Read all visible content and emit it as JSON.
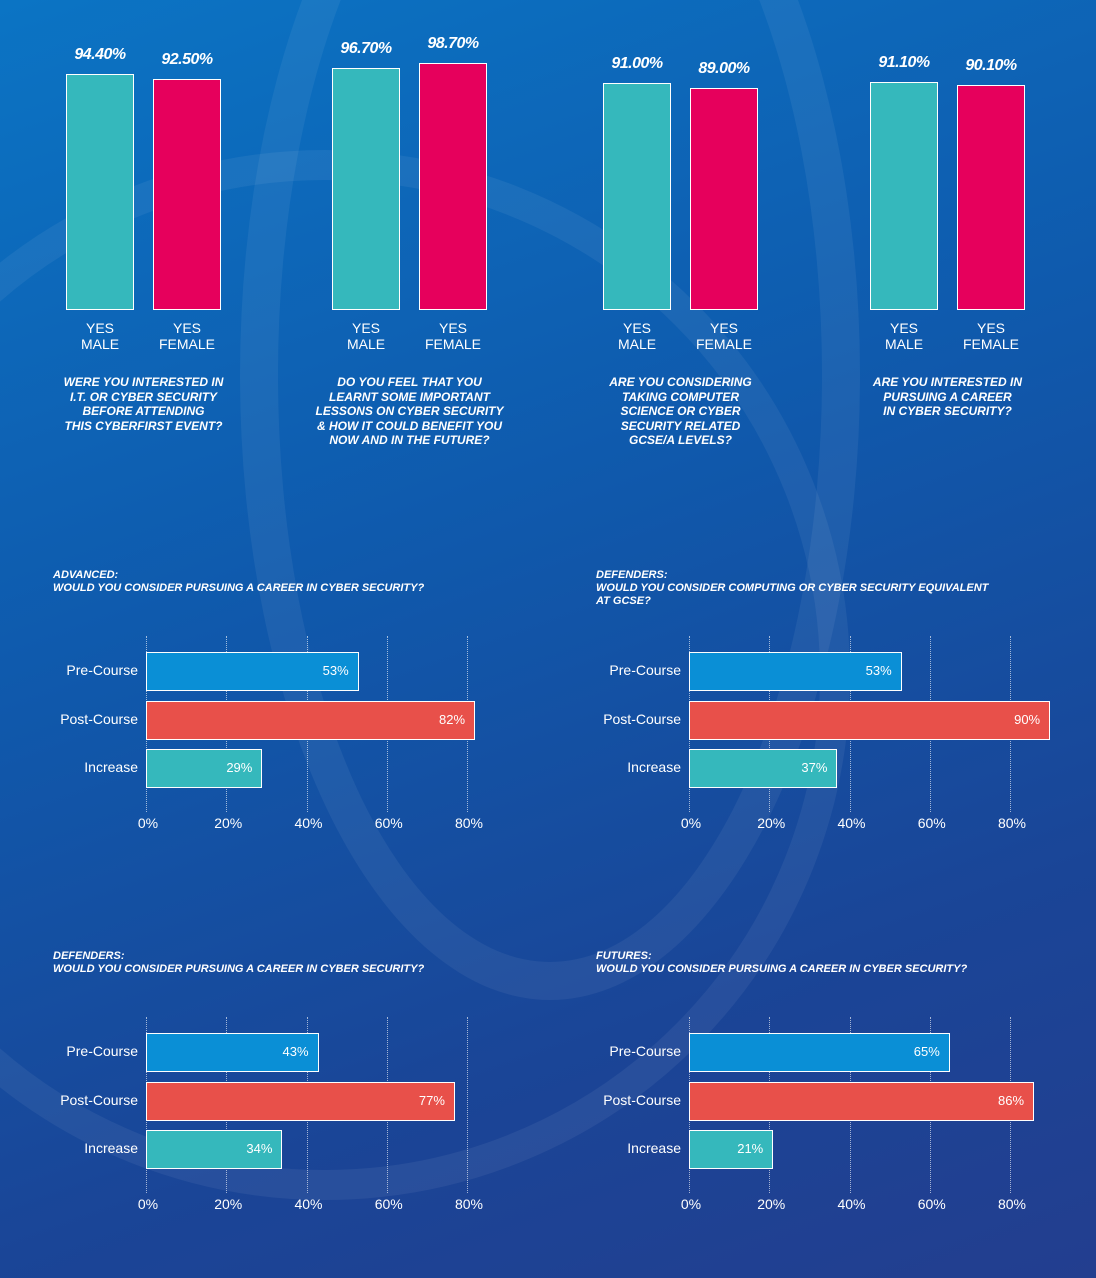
{
  "chart_data": [
    {
      "type": "bar",
      "categories": [
        "YES\nMALE",
        "YES\nFEMALE"
      ],
      "values": [
        94.4,
        92.5
      ],
      "value_labels": [
        "94.40%",
        "92.50%"
      ],
      "colors": [
        "#35b8bc",
        "#e6005c"
      ],
      "ylim": [
        0,
        100
      ],
      "caption": "WERE YOU INTERESTED IN\nI.T. OR CYBER SECURITY\nBEFORE ATTENDING\nTHIS CYBERFIRST EVENT?"
    },
    {
      "type": "bar",
      "categories": [
        "YES\nMALE",
        "YES\nFEMALE"
      ],
      "values": [
        96.7,
        98.7
      ],
      "value_labels": [
        "96.70%",
        "98.70%"
      ],
      "colors": [
        "#35b8bc",
        "#e6005c"
      ],
      "ylim": [
        0,
        100
      ],
      "caption": "DO YOU FEEL THAT YOU\nLEARNT SOME IMPORTANT\nLESSONS ON CYBER SECURITY\n& HOW IT COULD BENEFIT YOU\nNOW AND IN THE FUTURE?"
    },
    {
      "type": "bar",
      "categories": [
        "YES\nMALE",
        "YES\nFEMALE"
      ],
      "values": [
        91.0,
        89.0
      ],
      "value_labels": [
        "91.00%",
        "89.00%"
      ],
      "colors": [
        "#35b8bc",
        "#e6005c"
      ],
      "ylim": [
        0,
        100
      ],
      "caption": "ARE YOU CONSIDERING\nTAKING COMPUTER\nSCIENCE OR CYBER\nSECURITY RELATED\nGCSE/A LEVELS?"
    },
    {
      "type": "bar",
      "categories": [
        "YES\nMALE",
        "YES\nFEMALE"
      ],
      "values": [
        91.1,
        90.1
      ],
      "value_labels": [
        "91.10%",
        "90.10%"
      ],
      "colors": [
        "#35b8bc",
        "#e6005c"
      ],
      "ylim": [
        0,
        100
      ],
      "caption": "ARE YOU INTERESTED IN\nPURSUING A CAREER\nIN CYBER SECURITY?"
    },
    {
      "type": "bar",
      "horizontal": true,
      "title": "ADVANCED:\nWOULD YOU CONSIDER PURSUING A CAREER IN CYBER SECURITY?",
      "categories": [
        "Pre-Course",
        "Post-Course",
        "Increase"
      ],
      "values": [
        53,
        82,
        29
      ],
      "value_labels": [
        "53%",
        "82%",
        "29%"
      ],
      "colors": [
        "#0a8fd6",
        "#e8504a",
        "#35b8bc"
      ],
      "xlim": [
        0,
        80
      ],
      "xticks": [
        {
          "value": 0,
          "label": "0%"
        },
        {
          "value": 20,
          "label": "20%"
        },
        {
          "value": 40,
          "label": "40%"
        },
        {
          "value": 60,
          "label": "60%"
        },
        {
          "value": 80,
          "label": "80%"
        }
      ],
      "grid": true
    },
    {
      "type": "bar",
      "horizontal": true,
      "title": "DEFENDERS:\nWOULD YOU CONSIDER COMPUTING OR CYBER SECURITY EQUIVALENT\nAT GCSE?",
      "categories": [
        "Pre-Course",
        "Post-Course",
        "Increase"
      ],
      "values": [
        53,
        90,
        37
      ],
      "value_labels": [
        "53%",
        "90%",
        "37%"
      ],
      "colors": [
        "#0a8fd6",
        "#e8504a",
        "#35b8bc"
      ],
      "xlim": [
        0,
        80
      ],
      "xticks": [
        {
          "value": 0,
          "label": "0%"
        },
        {
          "value": 20,
          "label": "20%"
        },
        {
          "value": 40,
          "label": "40%"
        },
        {
          "value": 60,
          "label": "60%"
        },
        {
          "value": 80,
          "label": "80%"
        }
      ],
      "grid": true
    },
    {
      "type": "bar",
      "horizontal": true,
      "title": "DEFENDERS:\nWOULD YOU CONSIDER PURSUING A CAREER IN CYBER SECURITY?",
      "categories": [
        "Pre-Course",
        "Post-Course",
        "Increase"
      ],
      "values": [
        43,
        77,
        34
      ],
      "value_labels": [
        "43%",
        "77%",
        "34%"
      ],
      "colors": [
        "#0a8fd6",
        "#e8504a",
        "#35b8bc"
      ],
      "xlim": [
        0,
        80
      ],
      "xticks": [
        {
          "value": 0,
          "label": "0%"
        },
        {
          "value": 20,
          "label": "20%"
        },
        {
          "value": 40,
          "label": "40%"
        },
        {
          "value": 60,
          "label": "60%"
        },
        {
          "value": 80,
          "label": "80%"
        }
      ],
      "grid": true
    },
    {
      "type": "bar",
      "horizontal": true,
      "title": "FUTURES:\nWOULD YOU CONSIDER PURSUING A CAREER IN CYBER SECURITY?",
      "categories": [
        "Pre-Course",
        "Post-Course",
        "Increase"
      ],
      "values": [
        65,
        86,
        21
      ],
      "value_labels": [
        "65%",
        "86%",
        "21%"
      ],
      "colors": [
        "#0a8fd6",
        "#e8504a",
        "#35b8bc"
      ],
      "xlim": [
        0,
        80
      ],
      "xticks": [
        {
          "value": 0,
          "label": "0%"
        },
        {
          "value": 20,
          "label": "20%"
        },
        {
          "value": 40,
          "label": "40%"
        },
        {
          "value": 60,
          "label": "60%"
        },
        {
          "value": 80,
          "label": "80%"
        }
      ],
      "grid": true
    }
  ]
}
